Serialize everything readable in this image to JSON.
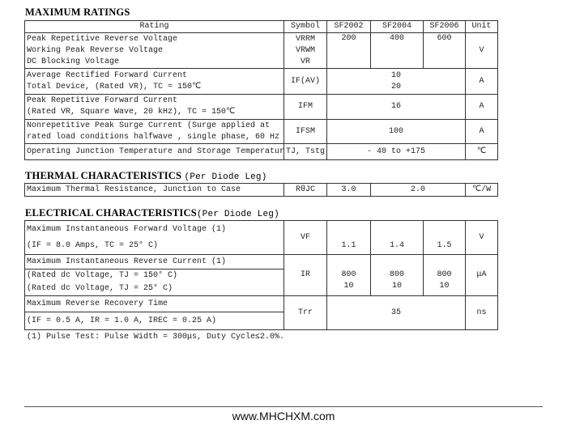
{
  "max_ratings": {
    "title": "MAXIMUM RATINGS",
    "headers": [
      "Rating",
      "Symbol",
      "SF2002",
      "SF2004",
      "SF2006",
      "Unit"
    ],
    "rows": [
      {
        "rating": [
          "Peak Repetitive Reverse Voltage",
          "Working Peak Reverse Voltage",
          "DC Blocking Voltage"
        ],
        "symbol": [
          "VRRM",
          "VRWM",
          "VR"
        ],
        "values": [
          "200",
          "400",
          "600"
        ],
        "unit": "V"
      },
      {
        "rating": [
          "Average Rectified Forward Current",
          "Total Device, (Rated VR), TC = 150℃"
        ],
        "symbol": "IF(AV)",
        "values": [
          "10",
          "20"
        ],
        "unit": "A"
      },
      {
        "rating": [
          "Peak Repetitive Forward Current",
          "(Rated VR, Square Wave, 20 kHz), TC = 150℃"
        ],
        "symbol": "IFM",
        "value": "16",
        "unit": "A"
      },
      {
        "rating": [
          "Nonrepetitive Peak Surge Current  (Surge applied at",
          " rated load conditions halfwave , single phase, 60 Hz"
        ],
        "symbol": "IFSM",
        "value": "100",
        "unit": "A"
      },
      {
        "rating": [
          "Operating Junction Temperature and Storage Temperatur"
        ],
        "symbol": "TJ, Tstg",
        "value": "- 40 to +175",
        "unit": "℃"
      }
    ]
  },
  "thermal": {
    "title": "THERMAL CHARACTERISTICS",
    "qualifier": "(Per Diode Leg)",
    "row": {
      "rating": "Maximum Thermal Resistance, Junction to Case",
      "symbol": "RθJC",
      "values": [
        "3.0",
        "2.0"
      ],
      "unit": "℃/W"
    }
  },
  "electrical": {
    "title": "ELECTRICAL CHARACTERISTICS",
    "qualifier": "(Per Diode Leg)",
    "rows": [
      {
        "rating": [
          "Maximum Instantaneous Forward Voltage (1)",
          "(IF = 8.0 Amps, TC = 25° C)"
        ],
        "symbol": "VF",
        "values": [
          "1.1",
          "1.4",
          "1.5"
        ],
        "unit": "V"
      },
      {
        "rating": [
          "Maximum Instantaneous Reverse Current (1)",
          "(Rated dc Voltage, TJ = 150° C)",
          "(Rated dc Voltage, TJ = 25° C)"
        ],
        "symbol": "IR",
        "values": [
          [
            "800",
            "10"
          ],
          [
            "800",
            "10"
          ],
          [
            "800",
            "10"
          ]
        ],
        "unit": "μA"
      },
      {
        "rating": [
          "Maximum Reverse Recovery Time",
          "(IF = 0.5 A, IR = 1.0 A, IREC = 0.25 A)"
        ],
        "symbol": "Trr",
        "value": "35",
        "unit": "ns"
      }
    ]
  },
  "footnote": "(1) Pulse Test: Pulse Width = 300μs, Duty Cycle≤2.0%.",
  "website": "www.MHCHXM.com"
}
